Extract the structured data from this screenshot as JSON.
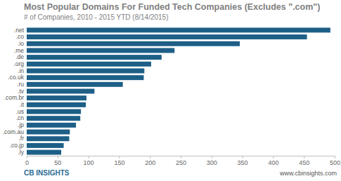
{
  "chart_data": {
    "type": "bar",
    "title": "Most Popular Domains For Funded Tech Companies (Excludes \".com\")",
    "subtitle": "# of Companies, 2010 - 2015 YTD (8/14/2015)",
    "orientation": "horizontal",
    "categories": [
      ".net",
      ".co",
      ".io",
      ".me",
      ".de",
      ".org",
      ".in",
      ".co.uk",
      ".ru",
      ".tv",
      ".com.br",
      ".it",
      ".us",
      ".cn",
      ".jp",
      ".com.au",
      ".fr",
      ".co.jp",
      ".ly"
    ],
    "values": [
      493,
      455,
      346,
      240,
      219,
      202,
      191,
      190,
      156,
      110,
      97,
      96,
      88,
      87,
      80,
      70,
      69,
      60,
      56
    ],
    "color": "#1d5f87",
    "xlim": [
      0,
      500
    ],
    "xticks": [
      0,
      50,
      100,
      150,
      200,
      250,
      300,
      350,
      400,
      450,
      500
    ],
    "grid": false,
    "annotations": [
      "CB INSIGHTS",
      "www.cbinsights.com"
    ]
  }
}
